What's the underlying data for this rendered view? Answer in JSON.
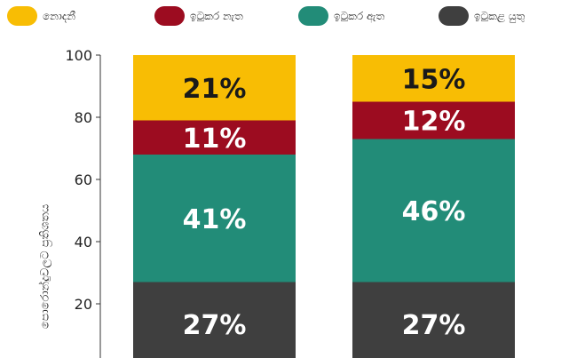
{
  "chart_data": {
    "type": "bar",
    "stacked": true,
    "categories": [
      "",
      ""
    ],
    "series": [
      {
        "name": "ඉටුකළ යුතු",
        "color": "#3f3f3f",
        "values": [
          27,
          27
        ]
      },
      {
        "name": "ඉටුකර ඇත",
        "color": "#228c78",
        "values": [
          41,
          46
        ]
      },
      {
        "name": "ඉටුකර නැත",
        "color": "#9c0c20",
        "values": [
          11,
          12
        ]
      },
      {
        "name": "නොදනී",
        "color": "#f8bd04",
        "values": [
          21,
          15
        ]
      }
    ],
    "legend_order": [
      3,
      2,
      1,
      0
    ],
    "value_labels": [
      [
        "27%",
        "41%",
        "11%",
        "21%"
      ],
      [
        "27%",
        "46%",
        "12%",
        "15%"
      ]
    ],
    "ylabel": "පොරොන්දුවලට ප්‍රතිශතය",
    "ylim": [
      0,
      100
    ],
    "yticks": [
      "100",
      "80",
      "60",
      "40",
      "20"
    ],
    "legend_position": "top",
    "grid": false
  }
}
